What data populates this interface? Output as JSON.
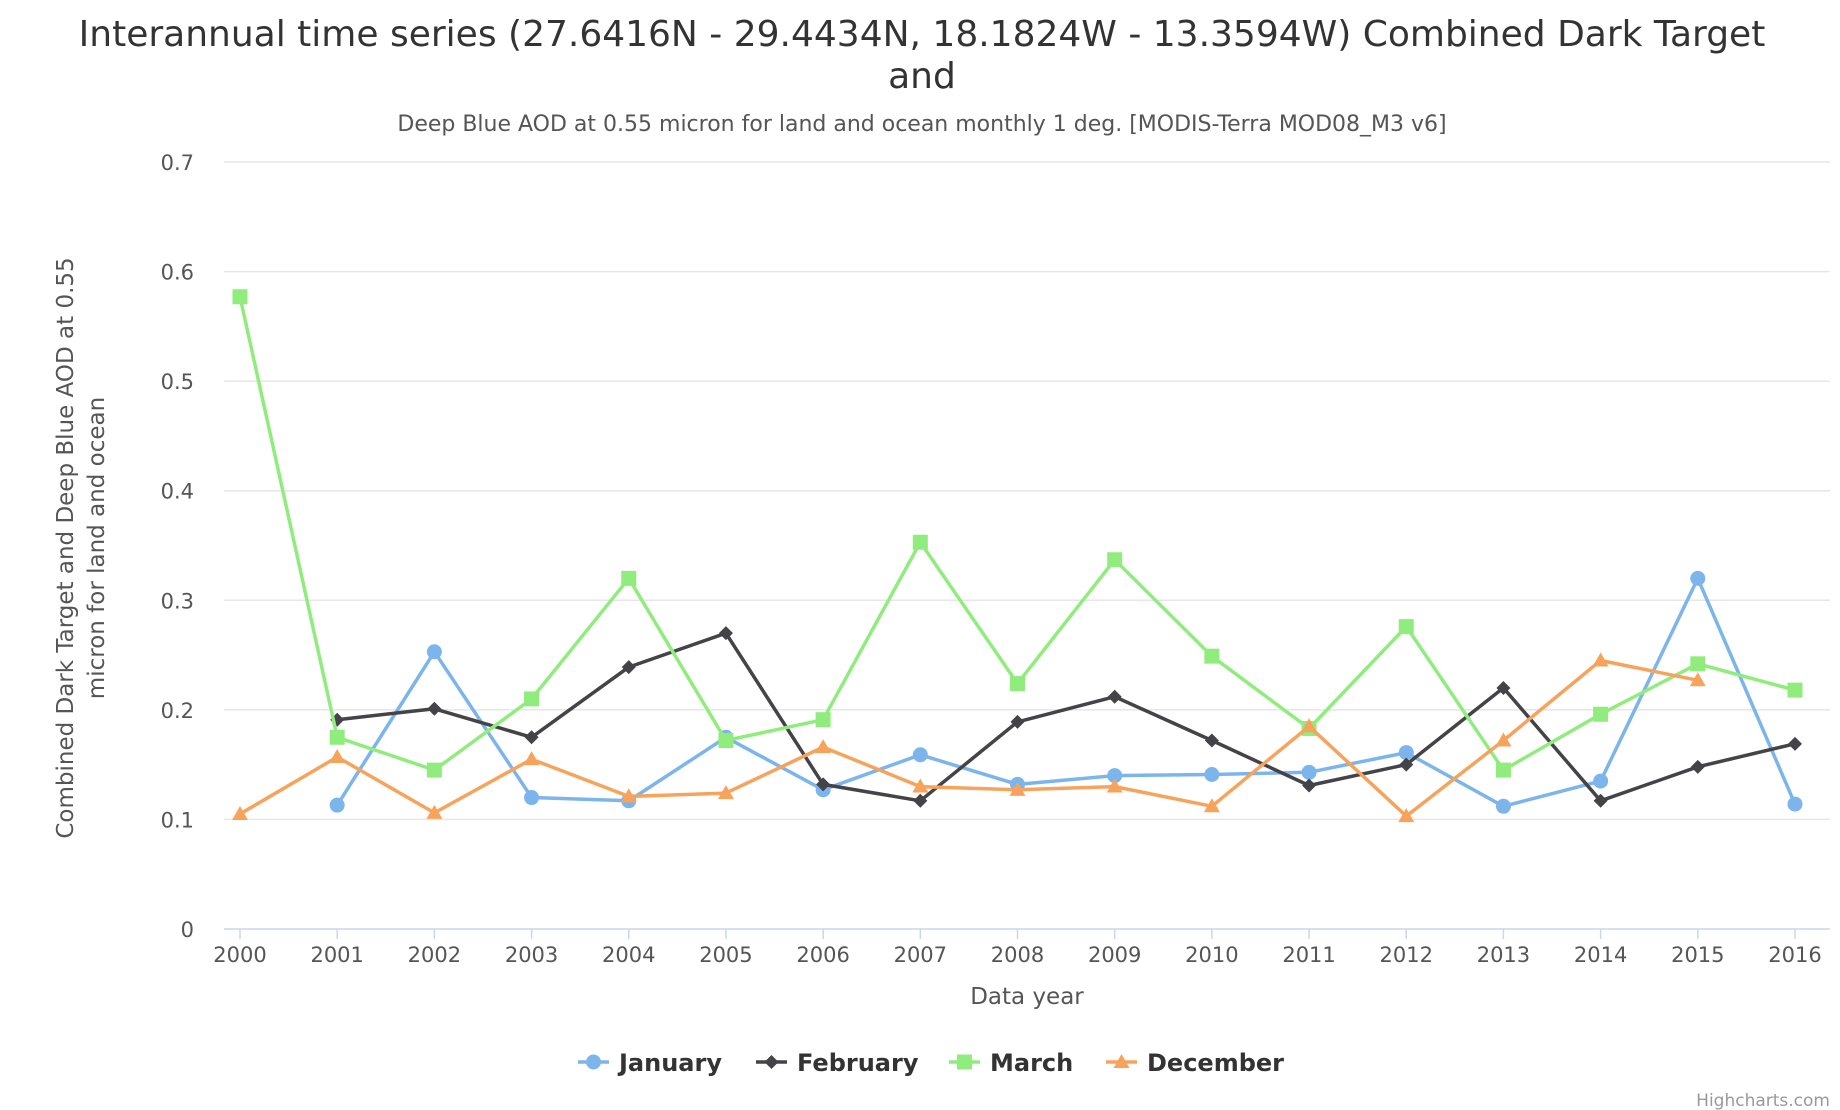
{
  "chart_data": {
    "type": "line",
    "title_lines": [
      "Interannual time series (27.6416N - 29.4434N, 18.1824W - 13.3594W) Combined Dark Target",
      "and"
    ],
    "subtitle": "Deep Blue AOD at 0.55 micron for land and ocean monthly 1 deg. [MODIS-Terra MOD08_M3 v6]",
    "ylabel_lines": [
      "Combined Dark Target and Deep Blue AOD at 0.55",
      "micron for land and ocean"
    ],
    "xlabel": "Data year",
    "ylim": [
      0,
      0.7
    ],
    "yticks": [
      "0",
      "0.1",
      "0.2",
      "0.3",
      "0.4",
      "0.5",
      "0.6",
      "0.7"
    ],
    "x": [
      "2000",
      "2001",
      "2002",
      "2003",
      "2004",
      "2005",
      "2006",
      "2007",
      "2008",
      "2009",
      "2010",
      "2011",
      "2012",
      "2013",
      "2014",
      "2015",
      "2016"
    ],
    "series": [
      {
        "name": "January",
        "color": "#7cb5ec",
        "marker": "circle",
        "values": [
          null,
          0.113,
          0.253,
          0.12,
          0.117,
          0.175,
          0.127,
          0.159,
          0.132,
          0.14,
          0.141,
          0.143,
          0.161,
          0.112,
          0.135,
          0.32,
          0.114
        ]
      },
      {
        "name": "February",
        "color": "#434348",
        "marker": "diamond",
        "values": [
          null,
          0.191,
          0.201,
          0.175,
          0.239,
          0.27,
          0.132,
          0.117,
          0.189,
          0.212,
          0.172,
          0.131,
          0.15,
          0.22,
          0.117,
          0.148,
          0.169
        ]
      },
      {
        "name": "March",
        "color": "#90ed7d",
        "marker": "square",
        "values": [
          0.577,
          0.175,
          0.145,
          0.21,
          0.32,
          0.172,
          0.191,
          0.353,
          0.224,
          0.337,
          0.249,
          0.183,
          0.276,
          0.145,
          0.196,
          0.242,
          0.218
        ]
      },
      {
        "name": "December",
        "color": "#f7a35c",
        "marker": "triangle",
        "values": [
          0.105,
          0.157,
          0.106,
          0.155,
          0.121,
          0.124,
          0.166,
          0.13,
          0.127,
          0.13,
          0.112,
          0.185,
          0.103,
          0.172,
          0.245,
          0.227,
          null
        ]
      }
    ],
    "legend_position": "bottom-center",
    "credits": "Highcharts.com"
  }
}
